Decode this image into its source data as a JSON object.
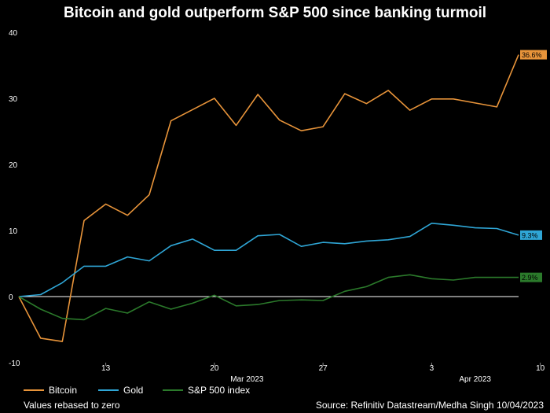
{
  "title": "Bitcoin and gold outperform S&P 500 since banking turmoil",
  "note": "Values rebased to zero",
  "source": "Source: Refinitiv Datastream/Medha Singh 10/04/2023",
  "colors": {
    "bitcoin": "#e8943a",
    "gold": "#2fa6d6",
    "sp500": "#2b7a2b",
    "zero_line": "#ffffff",
    "text": "#ffffff",
    "background": "#000000"
  },
  "chart_data": {
    "type": "line",
    "title": "Bitcoin and gold outperform S&P 500 since banking turmoil",
    "xlabel": "",
    "ylabel": "",
    "ylim": [
      -10,
      40
    ],
    "yticks": [
      -10,
      0,
      10,
      20,
      30,
      40
    ],
    "xticks": [
      {
        "index": 4,
        "label": "13"
      },
      {
        "index": 9,
        "label": "20"
      },
      {
        "index": 14,
        "label": "27"
      },
      {
        "index": 19,
        "label": "3"
      },
      {
        "index": 24,
        "label": "10"
      }
    ],
    "month_labels": [
      {
        "index": 10.5,
        "label": "Mar 2023"
      },
      {
        "index": 21,
        "label": "Apr 2023"
      }
    ],
    "series": [
      {
        "name": "Bitcoin",
        "color": "#e8943a",
        "end_label": "36.6%",
        "values": [
          0,
          -6.3,
          -6.8,
          11.5,
          14,
          12.3,
          15.4,
          26.6,
          28.3,
          30,
          25.9,
          30.6,
          26.7,
          25.1,
          25.7,
          30.7,
          29.2,
          31.2,
          28.2,
          29.9,
          29.9,
          29.3,
          28.7,
          36.6
        ]
      },
      {
        "name": "Gold",
        "color": "#2fa6d6",
        "end_label": "9.3%",
        "values": [
          0,
          0.3,
          2.1,
          4.6,
          4.6,
          6,
          5.4,
          7.7,
          8.7,
          7,
          7,
          9.2,
          9.4,
          7.6,
          8.2,
          8,
          8.4,
          8.6,
          9.1,
          11.1,
          10.8,
          10.4,
          10.3,
          9.3
        ]
      },
      {
        "name": "S&P 500 index",
        "color": "#2b7a2b",
        "end_label": "2.9%",
        "values": [
          0,
          -1.9,
          -3.3,
          -3.5,
          -1.8,
          -2.5,
          -0.8,
          -1.9,
          -1,
          0.2,
          -1.4,
          -1.2,
          -0.6,
          -0.5,
          -0.6,
          0.8,
          1.5,
          2.9,
          3.3,
          2.7,
          2.5,
          2.9,
          2.9,
          2.9
        ]
      }
    ],
    "legend": [
      "Bitcoin",
      "Gold",
      "S&P 500 index"
    ]
  }
}
